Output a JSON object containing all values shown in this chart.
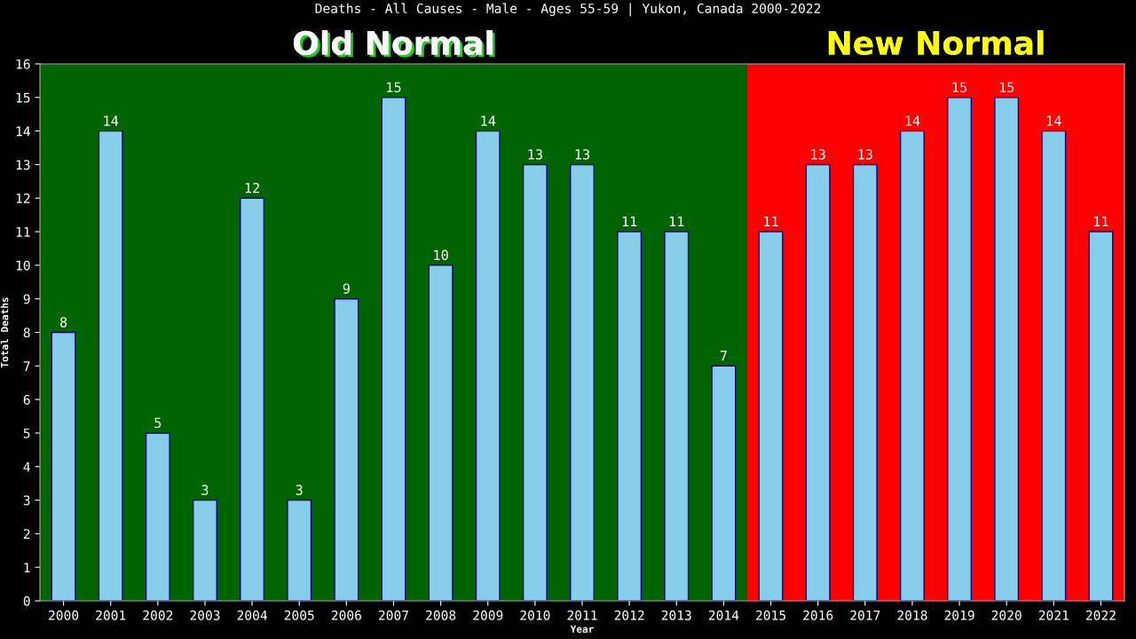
{
  "chart_data": {
    "type": "bar",
    "title": "Deaths - All Causes - Male - Ages 55-59 | Yukon, Canada 2000-2022",
    "xlabel": "Year",
    "ylabel": "Total Deaths",
    "categories": [
      "2000",
      "2001",
      "2002",
      "2003",
      "2004",
      "2005",
      "2006",
      "2007",
      "2008",
      "2009",
      "2010",
      "2011",
      "2012",
      "2013",
      "2014",
      "2015",
      "2016",
      "2017",
      "2018",
      "2019",
      "2020",
      "2021",
      "2022"
    ],
    "values": [
      8,
      14,
      5,
      3,
      12,
      3,
      9,
      15,
      10,
      14,
      13,
      13,
      11,
      11,
      7,
      11,
      13,
      13,
      14,
      15,
      15,
      14,
      11
    ],
    "color": "#87ceeb",
    "ylim": [
      0,
      16
    ],
    "yticks": [
      0,
      1,
      2,
      3,
      4,
      5,
      6,
      7,
      8,
      9,
      10,
      11,
      12,
      13,
      14,
      15,
      16
    ],
    "bands": [
      {
        "axis": "x",
        "from": "2000",
        "to": "2014",
        "label": "Old Normal",
        "color": "#006400"
      },
      {
        "axis": "x",
        "from": "2015",
        "to": "2022",
        "label": "New Normal",
        "color": "#ff0000"
      }
    ],
    "data_labels": true,
    "grid": false,
    "legend": false
  }
}
